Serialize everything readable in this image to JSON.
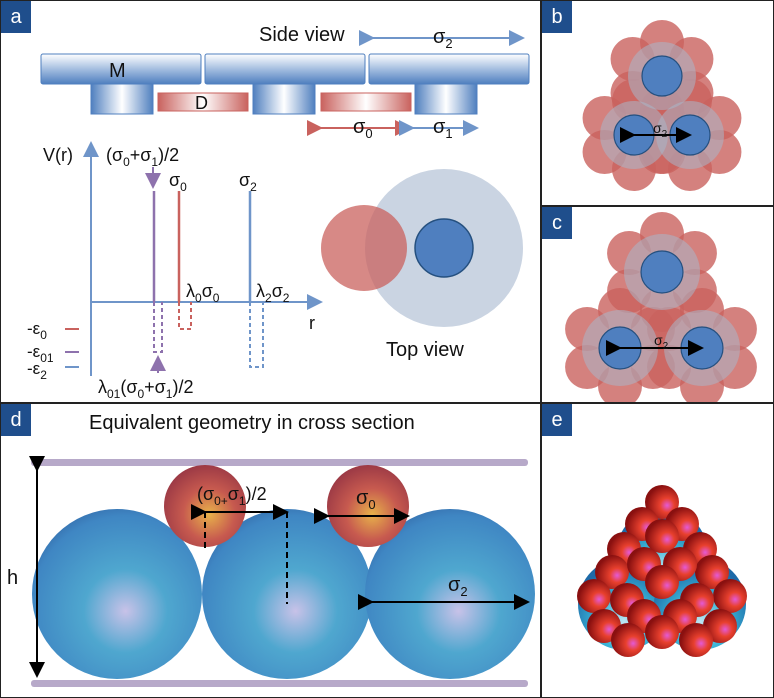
{
  "panels": {
    "a": {
      "tag": "a",
      "side_view_title": "Side view",
      "top_view_title": "Top view",
      "label_M": "M",
      "label_D": "D",
      "sigma2_main": "σ",
      "sigma2_sub": "2",
      "sigma0_main": "σ",
      "sigma0_sub": "0",
      "sigma1_main": "σ",
      "sigma1_sub": "1",
      "axis_v": "V(r)",
      "axis_r": "r",
      "midpoint_label": "(σ0+σ1)/2",
      "lambda0_label": "λ0σ0",
      "lambda2_label": "λ2σ2",
      "eps0": "-ε0",
      "eps01": "-ε01",
      "eps2": "-ε2",
      "lambda01_label": "λ01(σ0+σ1)/2"
    },
    "b": {
      "tag": "b",
      "sigma2_main": "σ",
      "sigma2_sub": "2"
    },
    "c": {
      "tag": "c",
      "sigma2_main": "σ",
      "sigma2_sub": "2"
    },
    "d": {
      "tag": "d",
      "title": "Equivalent geometry in cross section",
      "h_label": "h",
      "sigma0_main": "σ",
      "sigma0_sub": "0",
      "sigma2_main": "σ",
      "sigma2_sub": "2",
      "half_sum_label": "(σ0+σ1)/2"
    },
    "e": {
      "tag": "e"
    }
  },
  "colors": {
    "blue": "#4f7fbf",
    "red": "#c9625e",
    "purple": "#8e72ad",
    "panel_tag": "#1f4e8c"
  }
}
